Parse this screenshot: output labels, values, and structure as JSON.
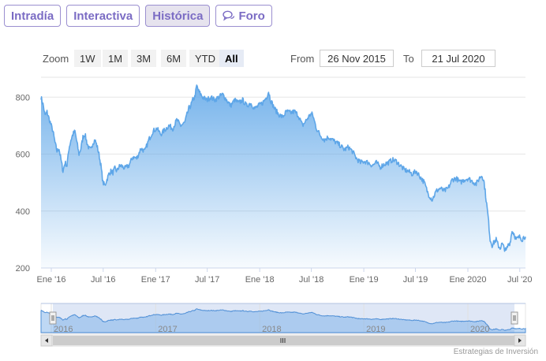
{
  "tabs": [
    {
      "label": "Intradía",
      "icon": ""
    },
    {
      "label": "Interactiva",
      "icon": ""
    },
    {
      "label": "Histórica",
      "icon": ""
    },
    {
      "label": "Foro",
      "icon": "chat-bubbles-icon"
    }
  ],
  "toolbar": {
    "zoom_label": "Zoom",
    "buttons": [
      "1W",
      "1M",
      "3M",
      "6M",
      "YTD",
      "All"
    ],
    "from_label": "From",
    "from_value": "26 Nov 2015",
    "to_label": "To",
    "to_value": "21 Jul 2020"
  },
  "credit": "Estrategias de Inversión",
  "colors": {
    "accent": "#7b6cc4",
    "series": "#5ea6e8"
  },
  "chart_data": {
    "type": "area",
    "x_start": "2015-11-26",
    "x_end": "2020-07-21",
    "ylim": [
      200,
      870
    ],
    "y_ticks": [
      200,
      400,
      600,
      800
    ],
    "x_ticks": [
      {
        "date": "2016-01-01",
        "label": "Ene '16"
      },
      {
        "date": "2016-07-01",
        "label": "Jul '16"
      },
      {
        "date": "2017-01-01",
        "label": "Ene '17"
      },
      {
        "date": "2017-07-01",
        "label": "Jul '17"
      },
      {
        "date": "2018-01-01",
        "label": "Ene '18"
      },
      {
        "date": "2018-07-01",
        "label": "Jul '18"
      },
      {
        "date": "2019-01-01",
        "label": "Ene '19"
      },
      {
        "date": "2019-07-01",
        "label": "Jul '19"
      },
      {
        "date": "2020-01-01",
        "label": "Ene 2020"
      },
      {
        "date": "2020-07-01",
        "label": "Jul '20"
      }
    ],
    "navigator_labels": [
      {
        "date": "2016-01-01",
        "label": "2016"
      },
      {
        "date": "2017-01-01",
        "label": "2017"
      },
      {
        "date": "2018-01-01",
        "label": "2018"
      },
      {
        "date": "2019-01-01",
        "label": "2019"
      },
      {
        "date": "2020-01-01",
        "label": "2020"
      }
    ],
    "grid": true,
    "points": [
      [
        "2015-11-26",
        800
      ],
      [
        "2015-12-03",
        775
      ],
      [
        "2015-12-10",
        735
      ],
      [
        "2015-12-17",
        748
      ],
      [
        "2015-12-24",
        725
      ],
      [
        "2016-01-07",
        680
      ],
      [
        "2016-01-14",
        640
      ],
      [
        "2016-01-21",
        610
      ],
      [
        "2016-01-28",
        620
      ],
      [
        "2016-02-04",
        580
      ],
      [
        "2016-02-11",
        540
      ],
      [
        "2016-02-18",
        570
      ],
      [
        "2016-02-25",
        560
      ],
      [
        "2016-03-03",
        620
      ],
      [
        "2016-03-10",
        650
      ],
      [
        "2016-03-17",
        670
      ],
      [
        "2016-03-24",
        680
      ],
      [
        "2016-03-31",
        640
      ],
      [
        "2016-04-07",
        600
      ],
      [
        "2016-04-14",
        620
      ],
      [
        "2016-04-21",
        660
      ],
      [
        "2016-04-28",
        670
      ],
      [
        "2016-05-05",
        640
      ],
      [
        "2016-05-12",
        620
      ],
      [
        "2016-05-19",
        615
      ],
      [
        "2016-05-26",
        640
      ],
      [
        "2016-06-02",
        650
      ],
      [
        "2016-06-09",
        630
      ],
      [
        "2016-06-16",
        600
      ],
      [
        "2016-06-23",
        560
      ],
      [
        "2016-06-30",
        500
      ],
      [
        "2016-07-07",
        490
      ],
      [
        "2016-07-14",
        510
      ],
      [
        "2016-07-21",
        530
      ],
      [
        "2016-07-28",
        540
      ],
      [
        "2016-08-04",
        535
      ],
      [
        "2016-08-11",
        550
      ],
      [
        "2016-08-18",
        540
      ],
      [
        "2016-08-25",
        555
      ],
      [
        "2016-09-01",
        560
      ],
      [
        "2016-09-15",
        550
      ],
      [
        "2016-09-29",
        560
      ],
      [
        "2016-10-13",
        590
      ],
      [
        "2016-10-27",
        585
      ],
      [
        "2016-11-10",
        620
      ],
      [
        "2016-11-24",
        610
      ],
      [
        "2016-12-08",
        650
      ],
      [
        "2016-12-22",
        680
      ],
      [
        "2017-01-05",
        690
      ],
      [
        "2017-01-19",
        670
      ],
      [
        "2017-02-02",
        685
      ],
      [
        "2017-02-16",
        700
      ],
      [
        "2017-03-02",
        690
      ],
      [
        "2017-03-16",
        720
      ],
      [
        "2017-03-30",
        700
      ],
      [
        "2017-04-13",
        710
      ],
      [
        "2017-04-27",
        760
      ],
      [
        "2017-05-04",
        770
      ],
      [
        "2017-05-11",
        790
      ],
      [
        "2017-05-18",
        800
      ],
      [
        "2017-05-25",
        840
      ],
      [
        "2017-06-01",
        820
      ],
      [
        "2017-06-15",
        800
      ],
      [
        "2017-06-29",
        790
      ],
      [
        "2017-07-13",
        800
      ],
      [
        "2017-07-27",
        790
      ],
      [
        "2017-08-10",
        800
      ],
      [
        "2017-08-24",
        810
      ],
      [
        "2017-09-07",
        790
      ],
      [
        "2017-09-21",
        770
      ],
      [
        "2017-10-05",
        790
      ],
      [
        "2017-10-19",
        780
      ],
      [
        "2017-11-02",
        790
      ],
      [
        "2017-11-16",
        770
      ],
      [
        "2017-11-30",
        780
      ],
      [
        "2017-12-14",
        760
      ],
      [
        "2017-12-28",
        770
      ],
      [
        "2018-01-11",
        780
      ],
      [
        "2018-01-25",
        800
      ],
      [
        "2018-02-01",
        820
      ],
      [
        "2018-02-08",
        790
      ],
      [
        "2018-02-22",
        760
      ],
      [
        "2018-03-08",
        740
      ],
      [
        "2018-03-22",
        730
      ],
      [
        "2018-04-05",
        750
      ],
      [
        "2018-04-19",
        745
      ],
      [
        "2018-05-03",
        750
      ],
      [
        "2018-05-17",
        735
      ],
      [
        "2018-05-31",
        700
      ],
      [
        "2018-06-14",
        720
      ],
      [
        "2018-06-28",
        740
      ],
      [
        "2018-07-05",
        740
      ],
      [
        "2018-07-19",
        690
      ],
      [
        "2018-08-02",
        665
      ],
      [
        "2018-08-16",
        650
      ],
      [
        "2018-08-30",
        660
      ],
      [
        "2018-09-13",
        650
      ],
      [
        "2018-09-27",
        640
      ],
      [
        "2018-10-11",
        630
      ],
      [
        "2018-10-25",
        615
      ],
      [
        "2018-11-08",
        625
      ],
      [
        "2018-11-22",
        610
      ],
      [
        "2018-12-06",
        585
      ],
      [
        "2018-12-20",
        570
      ],
      [
        "2019-01-03",
        575
      ],
      [
        "2019-01-17",
        570
      ],
      [
        "2019-01-31",
        560
      ],
      [
        "2019-02-14",
        570
      ],
      [
        "2019-02-28",
        555
      ],
      [
        "2019-03-14",
        565
      ],
      [
        "2019-03-28",
        570
      ],
      [
        "2019-04-11",
        580
      ],
      [
        "2019-04-25",
        575
      ],
      [
        "2019-05-09",
        560
      ],
      [
        "2019-05-23",
        545
      ],
      [
        "2019-06-06",
        540
      ],
      [
        "2019-06-20",
        530
      ],
      [
        "2019-07-04",
        540
      ],
      [
        "2019-07-18",
        520
      ],
      [
        "2019-08-01",
        500
      ],
      [
        "2019-08-15",
        460
      ],
      [
        "2019-08-29",
        440
      ],
      [
        "2019-09-12",
        470
      ],
      [
        "2019-09-26",
        480
      ],
      [
        "2019-10-10",
        470
      ],
      [
        "2019-10-24",
        480
      ],
      [
        "2019-11-07",
        510
      ],
      [
        "2019-11-21",
        515
      ],
      [
        "2019-12-05",
        500
      ],
      [
        "2019-12-19",
        510
      ],
      [
        "2020-01-02",
        515
      ],
      [
        "2020-01-16",
        505
      ],
      [
        "2020-01-30",
        495
      ],
      [
        "2020-02-13",
        520
      ],
      [
        "2020-02-20",
        525
      ],
      [
        "2020-02-27",
        500
      ],
      [
        "2020-03-05",
        440
      ],
      [
        "2020-03-12",
        380
      ],
      [
        "2020-03-19",
        300
      ],
      [
        "2020-03-26",
        280
      ],
      [
        "2020-04-02",
        290
      ],
      [
        "2020-04-09",
        300
      ],
      [
        "2020-04-16",
        280
      ],
      [
        "2020-04-23",
        270
      ],
      [
        "2020-04-30",
        285
      ],
      [
        "2020-05-07",
        270
      ],
      [
        "2020-05-14",
        260
      ],
      [
        "2020-05-21",
        280
      ],
      [
        "2020-05-28",
        290
      ],
      [
        "2020-06-04",
        330
      ],
      [
        "2020-06-11",
        320
      ],
      [
        "2020-06-18",
        300
      ],
      [
        "2020-06-25",
        305
      ],
      [
        "2020-07-02",
        310
      ],
      [
        "2020-07-09",
        300
      ],
      [
        "2020-07-16",
        310
      ],
      [
        "2020-07-21",
        310
      ]
    ]
  }
}
